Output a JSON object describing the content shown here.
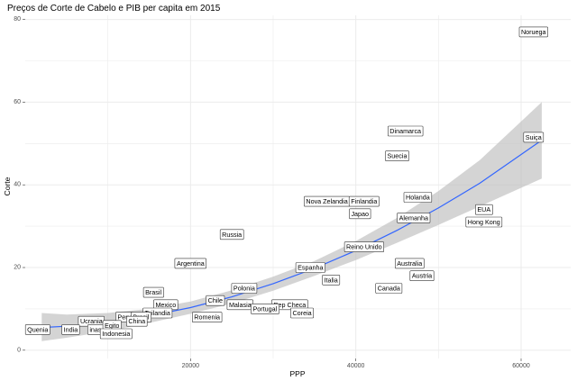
{
  "chart_data": {
    "type": "scatter",
    "title": "Preços de Corte de Cabelo e PIB per capita em 2015",
    "xlabel": "PPP",
    "ylabel": "Corte",
    "xlim": [
      0,
      66000
    ],
    "ylim": [
      -2,
      81
    ],
    "xticks": [
      20000,
      40000,
      60000
    ],
    "xtick_labels": [
      "20000",
      "40000",
      "60000"
    ],
    "yticks": [
      0,
      20,
      40,
      60,
      80
    ],
    "ytick_labels": [
      "0",
      "20",
      "40",
      "60",
      "80"
    ],
    "grid": true,
    "points": [
      {
        "label": "Noruega",
        "x": 61500,
        "y": 77
      },
      {
        "label": "Suiça",
        "x": 61500,
        "y": 51.5
      },
      {
        "label": "Dinamarca",
        "x": 46000,
        "y": 53
      },
      {
        "label": "Suecia",
        "x": 45000,
        "y": 47
      },
      {
        "label": "Holanda",
        "x": 47500,
        "y": 37
      },
      {
        "label": "EUA",
        "x": 55500,
        "y": 34
      },
      {
        "label": "Hong Kong",
        "x": 55500,
        "y": 31
      },
      {
        "label": "Alemanha",
        "x": 47000,
        "y": 32
      },
      {
        "label": "Nova Zelandia",
        "x": 36500,
        "y": 36
      },
      {
        "label": "Finlandia",
        "x": 41000,
        "y": 36
      },
      {
        "label": "Japao",
        "x": 40500,
        "y": 33
      },
      {
        "label": "Russia",
        "x": 25000,
        "y": 28
      },
      {
        "label": "Reino Unido",
        "x": 41000,
        "y": 25
      },
      {
        "label": "Argentina",
        "x": 20000,
        "y": 21
      },
      {
        "label": "Espanha",
        "x": 34500,
        "y": 20
      },
      {
        "label": "Australia",
        "x": 46500,
        "y": 21
      },
      {
        "label": "Italia",
        "x": 37000,
        "y": 17
      },
      {
        "label": "Austria",
        "x": 48000,
        "y": 18
      },
      {
        "label": "Canada",
        "x": 44000,
        "y": 15
      },
      {
        "label": "Brasil",
        "x": 15500,
        "y": 14
      },
      {
        "label": "Polonia",
        "x": 26500,
        "y": 15
      },
      {
        "label": "Chile",
        "x": 23000,
        "y": 12
      },
      {
        "label": "Malasia",
        "x": 26000,
        "y": 11
      },
      {
        "label": "Mexico",
        "x": 17000,
        "y": 11
      },
      {
        "label": "Rep Checa",
        "x": 32000,
        "y": 11
      },
      {
        "label": "Portugal",
        "x": 29000,
        "y": 10
      },
      {
        "label": "Romenia",
        "x": 22000,
        "y": 8
      },
      {
        "label": "Coreia",
        "x": 33500,
        "y": 9
      },
      {
        "label": "Tailandia",
        "x": 16000,
        "y": 9
      },
      {
        "label": "Peru",
        "x": 12000,
        "y": 8
      },
      {
        "label": "Brasil",
        "x": 14000,
        "y": 8
      },
      {
        "label": "Ucrania",
        "x": 8000,
        "y": 7
      },
      {
        "label": "China",
        "x": 13500,
        "y": 7
      },
      {
        "label": "India",
        "x": 5500,
        "y": 5
      },
      {
        "label": "inas",
        "x": 8500,
        "y": 5
      },
      {
        "label": "Egito",
        "x": 10500,
        "y": 6
      },
      {
        "label": "Indonesia",
        "x": 11000,
        "y": 4
      },
      {
        "label": "Quenia",
        "x": 1500,
        "y": 5
      }
    ],
    "trend": {
      "x": [
        2000,
        5000,
        10000,
        15000,
        20000,
        25000,
        30000,
        35000,
        40000,
        45000,
        50000,
        55000,
        62500
      ],
      "y": [
        5.5,
        5.8,
        6.8,
        8.3,
        10.3,
        12.9,
        16.1,
        19.8,
        24.1,
        29,
        34.4,
        40.4,
        50.8
      ],
      "lower": [
        2.2,
        3.0,
        4.6,
        6.6,
        8.8,
        11.3,
        14.4,
        18.0,
        21.8,
        26.0,
        30.3,
        34.8,
        41.5
      ],
      "upper": [
        9.0,
        8.6,
        9.0,
        10.0,
        11.8,
        14.5,
        17.8,
        21.6,
        26.4,
        32.0,
        38.5,
        46.0,
        60.0
      ]
    },
    "colors": {
      "line": "#3366ff",
      "ribbon": "#bdbdbd",
      "grid": "#ebebeb"
    }
  }
}
